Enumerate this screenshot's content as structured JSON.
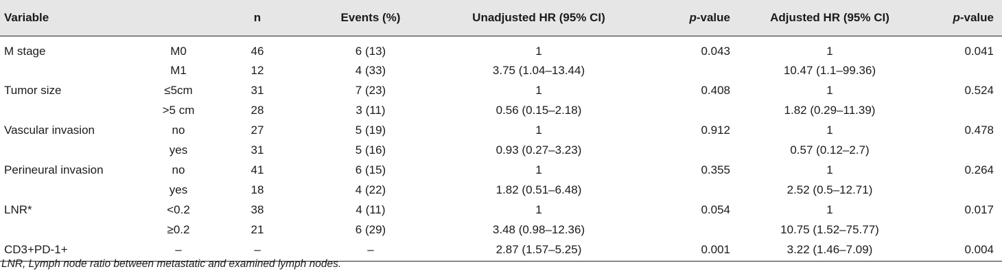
{
  "table": {
    "headers": {
      "variable": "Variable",
      "subgroup": "",
      "n": "n",
      "events": "Events (%)",
      "unadjusted_hr": "Unadjusted HR (95% CI)",
      "p1_italic": "p",
      "p1_rest": "-value",
      "adjusted_hr": "Adjusted HR (95% CI)",
      "p2_italic": "p",
      "p2_rest": "-value"
    },
    "rows": [
      {
        "variable": "M stage",
        "subgroup": "M0",
        "n": "46",
        "events": "6 (13)",
        "unadjusted_hr": "1",
        "p1": "0.043",
        "adjusted_hr": "1",
        "p2": "0.041"
      },
      {
        "variable": "",
        "subgroup": "M1",
        "n": "12",
        "events": "4 (33)",
        "unadjusted_hr": "3.75 (1.04–13.44)",
        "p1": "",
        "adjusted_hr": "10.47 (1.1–99.36)",
        "p2": ""
      },
      {
        "variable": "Tumor size",
        "subgroup": "≤5cm",
        "n": "31",
        "events": "7 (23)",
        "unadjusted_hr": "1",
        "p1": "0.408",
        "adjusted_hr": "1",
        "p2": "0.524"
      },
      {
        "variable": "",
        "subgroup": ">5 cm",
        "n": "28",
        "events": "3 (11)",
        "unadjusted_hr": "0.56 (0.15–2.18)",
        "p1": "",
        "adjusted_hr": "1.82 (0.29–11.39)",
        "p2": ""
      },
      {
        "variable": "Vascular invasion",
        "subgroup": "no",
        "n": "27",
        "events": "5 (19)",
        "unadjusted_hr": "1",
        "p1": "0.912",
        "adjusted_hr": "1",
        "p2": "0.478"
      },
      {
        "variable": "",
        "subgroup": "yes",
        "n": "31",
        "events": "5 (16)",
        "unadjusted_hr": "0.93 (0.27–3.23)",
        "p1": "",
        "adjusted_hr": "0.57 (0.12–2.7)",
        "p2": ""
      },
      {
        "variable": "Perineural invasion",
        "subgroup": "no",
        "n": "41",
        "events": "6 (15)",
        "unadjusted_hr": "1",
        "p1": "0.355",
        "adjusted_hr": "1",
        "p2": "0.264"
      },
      {
        "variable": "",
        "subgroup": "yes",
        "n": "18",
        "events": "4 (22)",
        "unadjusted_hr": "1.82 (0.51–6.48)",
        "p1": "",
        "adjusted_hr": "2.52 (0.5–12.71)",
        "p2": ""
      },
      {
        "variable": "LNR*",
        "subgroup": "<0.2",
        "n": "38",
        "events": "4 (11)",
        "unadjusted_hr": "1",
        "p1": "0.054",
        "adjusted_hr": "1",
        "p2": "0.017"
      },
      {
        "variable": "",
        "subgroup": "≥0.2",
        "n": "21",
        "events": "6 (29)",
        "unadjusted_hr": "3.48 (0.98–12.36)",
        "p1": "",
        "adjusted_hr": "10.75 (1.52–75.77)",
        "p2": ""
      },
      {
        "variable": "CD3+PD-1+",
        "subgroup": "–",
        "n": "–",
        "events": "–",
        "unadjusted_hr": "2.87 (1.57–5.25)",
        "p1": "0.001",
        "adjusted_hr": "3.22 (1.46–7.09)",
        "p2": "0.004"
      }
    ]
  },
  "footnote": "LNR, Lymph node ratio between metastatic and examined lymph nodes."
}
